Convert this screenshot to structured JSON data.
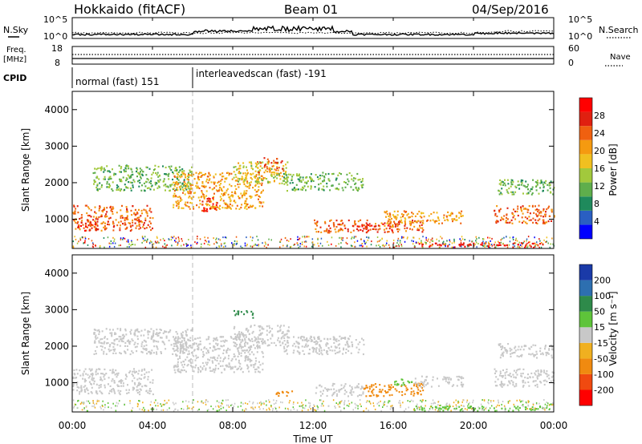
{
  "header": {
    "site": "Hokkaido (fitACF)",
    "beam": "Beam 01",
    "date": "04/Sep/2016"
  },
  "strips": {
    "nsky_label": "N.Sky",
    "nsky_top": "10^5",
    "nsky_bottom": "10^0",
    "nsearch_label": "N.Search",
    "nsearch_top": "10^5",
    "nsearch_bottom": "10^0",
    "freq_label_line1": "Freq.",
    "freq_label_line2": "[MHz]",
    "freq_top": "18",
    "freq_bottom": "8",
    "nave_label": "Nave",
    "nave_top": "60",
    "nave_bottom": "0",
    "cpid_label": "CPID",
    "cpid_segments": [
      {
        "label": "normal (fast) 151",
        "start_hour": 0,
        "end_hour": 6
      },
      {
        "label": "interleavedscan (fast) -191",
        "start_hour": 6,
        "end_hour": 24
      }
    ]
  },
  "x_axis": {
    "label": "Time UT",
    "ticks": [
      "00:00",
      "04:00",
      "08:00",
      "12:00",
      "16:00",
      "20:00",
      "00:00"
    ],
    "range_hours": [
      0,
      24
    ]
  },
  "power_panel": {
    "ylabel": "Slant Range [km]",
    "yticks": [
      "1000",
      "2000",
      "3000",
      "4000"
    ],
    "colorbar_label": "Power [dB]",
    "colorbar_ticks": [
      "4",
      "8",
      "12",
      "16",
      "20",
      "24",
      "28"
    ],
    "colors": [
      "#0000ff",
      "#2a5fc2",
      "#1f8a5c",
      "#5fae4c",
      "#a2c93c",
      "#f0c020",
      "#f59a10",
      "#f06010",
      "#e02010",
      "#ff0000"
    ]
  },
  "velocity_panel": {
    "ylabel": "Slant Range [km]",
    "yticks": [
      "1000",
      "2000",
      "3000",
      "4000"
    ],
    "colorbar_label": "Velocity [m s⁻¹]",
    "colorbar_ticks": [
      "200",
      "100",
      "50",
      "15",
      "-15",
      "-50",
      "-100",
      "-200"
    ],
    "colors": [
      "#1a3aa8",
      "#2d6fb0",
      "#2e8a4a",
      "#5ec43a",
      "#c8c8c8",
      "#f0b020",
      "#f08a10",
      "#f04a10",
      "#ff0000"
    ]
  },
  "chart_data": {
    "type": "heatmap",
    "x_range_hours": [
      0,
      24
    ],
    "y_range_km": [
      200,
      4500
    ],
    "power_regions": [
      {
        "t0": 0.0,
        "t1": 4.0,
        "r0": 700,
        "r1": 1400,
        "power_db": 24
      },
      {
        "t0": 0.2,
        "t1": 1.2,
        "r0": 700,
        "r1": 950,
        "power_db": 28
      },
      {
        "t0": 1.0,
        "t1": 6.0,
        "r0": 1800,
        "r1": 2500,
        "power_db": 12
      },
      {
        "t0": 5.0,
        "t1": 9.5,
        "r0": 1300,
        "r1": 2300,
        "power_db": 20
      },
      {
        "t0": 6.4,
        "t1": 7.2,
        "r0": 1200,
        "r1": 1600,
        "power_db": 28
      },
      {
        "t0": 8.0,
        "t1": 10.8,
        "r0": 2000,
        "r1": 2600,
        "power_db": 16
      },
      {
        "t0": 9.2,
        "t1": 10.5,
        "r0": 2300,
        "r1": 2700,
        "power_db": 24
      },
      {
        "t0": 10.5,
        "t1": 14.5,
        "r0": 1800,
        "r1": 2300,
        "power_db": 12
      },
      {
        "t0": 12.0,
        "t1": 17.5,
        "r0": 650,
        "r1": 1000,
        "power_db": 24
      },
      {
        "t0": 14.0,
        "t1": 16.0,
        "r0": 700,
        "r1": 900,
        "power_db": 28
      },
      {
        "t0": 15.5,
        "t1": 19.5,
        "r0": 900,
        "r1": 1250,
        "power_db": 20
      },
      {
        "t0": 17.0,
        "t1": 23.5,
        "r0": 250,
        "r1": 380,
        "power_db": 28
      },
      {
        "t0": 21.0,
        "t1": 24.0,
        "r0": 900,
        "r1": 1400,
        "power_db": 24
      },
      {
        "t0": 21.2,
        "t1": 24.0,
        "r0": 1700,
        "r1": 2100,
        "power_db": 12
      }
    ],
    "velocity_regions": [
      {
        "t0": 0.0,
        "t1": 4.0,
        "r0": 700,
        "r1": 1400,
        "velocity_ms": 0
      },
      {
        "t0": 1.0,
        "t1": 6.0,
        "r0": 1800,
        "r1": 2500,
        "velocity_ms": 0
      },
      {
        "t0": 5.0,
        "t1": 9.5,
        "r0": 1300,
        "r1": 2300,
        "velocity_ms": 0
      },
      {
        "t0": 8.0,
        "t1": 10.8,
        "r0": 2000,
        "r1": 2600,
        "velocity_ms": 0
      },
      {
        "t0": 10.5,
        "t1": 14.5,
        "r0": 1800,
        "r1": 2300,
        "velocity_ms": 0
      },
      {
        "t0": 8.0,
        "t1": 9.0,
        "r0": 2800,
        "r1": 3000,
        "velocity_ms": 60
      },
      {
        "t0": 12.0,
        "t1": 14.5,
        "r0": 650,
        "r1": 1000,
        "velocity_ms": 0
      },
      {
        "t0": 14.5,
        "t1": 17.5,
        "r0": 650,
        "r1": 1000,
        "velocity_ms": -60
      },
      {
        "t0": 10.0,
        "t1": 11.0,
        "r0": 650,
        "r1": 800,
        "velocity_ms": -60
      },
      {
        "t0": 16.0,
        "t1": 17.0,
        "r0": 950,
        "r1": 1150,
        "velocity_ms": 40
      },
      {
        "t0": 17.0,
        "t1": 19.5,
        "r0": 900,
        "r1": 1200,
        "velocity_ms": 0
      },
      {
        "t0": 21.0,
        "t1": 24.0,
        "r0": 900,
        "r1": 1400,
        "velocity_ms": 0
      },
      {
        "t0": 21.2,
        "t1": 24.0,
        "r0": 1700,
        "r1": 2100,
        "velocity_ms": 0
      },
      {
        "t0": 17.0,
        "t1": 23.5,
        "r0": 250,
        "r1": 380,
        "velocity_ms": 30
      }
    ]
  }
}
